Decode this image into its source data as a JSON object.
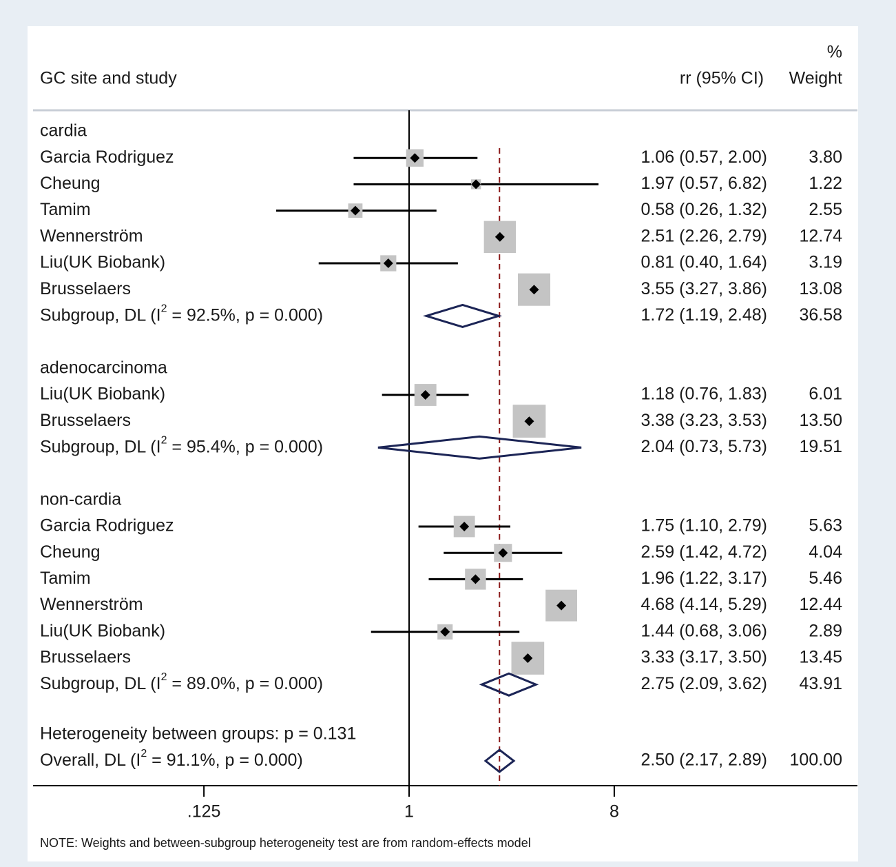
{
  "chart_data": {
    "type": "forest",
    "header": {
      "study_col": "GC site and study",
      "estimate_col": "rr (95% CI)",
      "weight_col_top": "%",
      "weight_col_bottom": "Weight"
    },
    "x_scale": "log2",
    "x_ticks": [
      {
        "value": 0.125,
        "label": ".125"
      },
      {
        "value": 1,
        "label": "1"
      },
      {
        "value": 8,
        "label": "8"
      }
    ],
    "null_line": 1,
    "overall_estimate_line": 2.5,
    "groups": [
      {
        "name": "cardia",
        "studies": [
          {
            "label": "Garcia Rodriguez",
            "rr": 1.06,
            "lo": 0.57,
            "hi": 2.0,
            "ci_text": "1.06 (0.57, 2.00)",
            "weight": 3.8,
            "weight_text": "3.80"
          },
          {
            "label": "Cheung",
            "rr": 1.97,
            "lo": 0.57,
            "hi": 6.82,
            "ci_text": "1.97 (0.57, 6.82)",
            "weight": 1.22,
            "weight_text": "1.22"
          },
          {
            "label": "Tamim",
            "rr": 0.58,
            "lo": 0.26,
            "hi": 1.32,
            "ci_text": "0.58 (0.26, 1.32)",
            "weight": 2.55,
            "weight_text": "2.55"
          },
          {
            "label": "Wennerström",
            "rr": 2.51,
            "lo": 2.26,
            "hi": 2.79,
            "ci_text": "2.51 (2.26, 2.79)",
            "weight": 12.74,
            "weight_text": "12.74"
          },
          {
            "label": "Liu(UK Biobank)",
            "rr": 0.81,
            "lo": 0.4,
            "hi": 1.64,
            "ci_text": "0.81 (0.40, 1.64)",
            "weight": 3.19,
            "weight_text": "3.19"
          },
          {
            "label": "Brusselaers",
            "rr": 3.55,
            "lo": 3.27,
            "hi": 3.86,
            "ci_text": "3.55 (3.27, 3.86)",
            "weight": 13.08,
            "weight_text": "13.08"
          }
        ],
        "subgroup": {
          "label_pre": "Subgroup, DL (I",
          "sup": "2",
          "label_post": " = 92.5%, p = 0.000)",
          "rr": 1.72,
          "lo": 1.19,
          "hi": 2.48,
          "ci_text": "1.72 (1.19, 2.48)",
          "weight_text": "36.58"
        }
      },
      {
        "name": "adenocarcinoma",
        "studies": [
          {
            "label": "Liu(UK Biobank)",
            "rr": 1.18,
            "lo": 0.76,
            "hi": 1.83,
            "ci_text": "1.18 (0.76, 1.83)",
            "weight": 6.01,
            "weight_text": "6.01"
          },
          {
            "label": "Brusselaers",
            "rr": 3.38,
            "lo": 3.23,
            "hi": 3.53,
            "ci_text": "3.38 (3.23, 3.53)",
            "weight": 13.5,
            "weight_text": "13.50"
          }
        ],
        "subgroup": {
          "label_pre": "Subgroup, DL (I",
          "sup": "2",
          "label_post": " = 95.4%, p = 0.000)",
          "rr": 2.04,
          "lo": 0.73,
          "hi": 5.73,
          "ci_text": "2.04 (0.73, 5.73)",
          "weight_text": "19.51"
        }
      },
      {
        "name": "non-cardia",
        "studies": [
          {
            "label": "Garcia Rodriguez",
            "rr": 1.75,
            "lo": 1.1,
            "hi": 2.79,
            "ci_text": "1.75 (1.10, 2.79)",
            "weight": 5.63,
            "weight_text": "5.63"
          },
          {
            "label": "Cheung",
            "rr": 2.59,
            "lo": 1.42,
            "hi": 4.72,
            "ci_text": "2.59 (1.42, 4.72)",
            "weight": 4.04,
            "weight_text": "4.04"
          },
          {
            "label": "Tamim",
            "rr": 1.96,
            "lo": 1.22,
            "hi": 3.17,
            "ci_text": "1.96 (1.22, 3.17)",
            "weight": 5.46,
            "weight_text": "5.46"
          },
          {
            "label": "Wennerström",
            "rr": 4.68,
            "lo": 4.14,
            "hi": 5.29,
            "ci_text": "4.68 (4.14, 5.29)",
            "weight": 12.44,
            "weight_text": "12.44"
          },
          {
            "label": "Liu(UK Biobank)",
            "rr": 1.44,
            "lo": 0.68,
            "hi": 3.06,
            "ci_text": "1.44 (0.68, 3.06)",
            "weight": 2.89,
            "weight_text": "2.89"
          },
          {
            "label": "Brusselaers",
            "rr": 3.33,
            "lo": 3.17,
            "hi": 3.5,
            "ci_text": "3.33 (3.17, 3.50)",
            "weight": 13.45,
            "weight_text": "13.45"
          }
        ],
        "subgroup": {
          "label_pre": "Subgroup, DL (I",
          "sup": "2",
          "label_post": " = 89.0%, p = 0.000)",
          "rr": 2.75,
          "lo": 2.09,
          "hi": 3.62,
          "ci_text": "2.75 (2.09, 3.62)",
          "weight_text": "43.91"
        }
      }
    ],
    "heterogeneity_text": "Heterogeneity between groups: p = 0.131",
    "overall": {
      "label_pre": "Overall, DL (I",
      "sup": "2",
      "label_post": " = 91.1%, p = 0.000)",
      "rr": 2.5,
      "lo": 2.17,
      "hi": 2.89,
      "ci_text": "2.50 (2.17, 2.89)",
      "weight_text": "100.00"
    },
    "note": "NOTE: Weights and between-subgroup heterogeneity test are from random-effects model",
    "colors": {
      "ci_line": "#000000",
      "weight_box": "#c4c4c4",
      "diamond": "#1c2556",
      "estimate_line": "#8b1a1a",
      "axis": "#000000"
    }
  }
}
